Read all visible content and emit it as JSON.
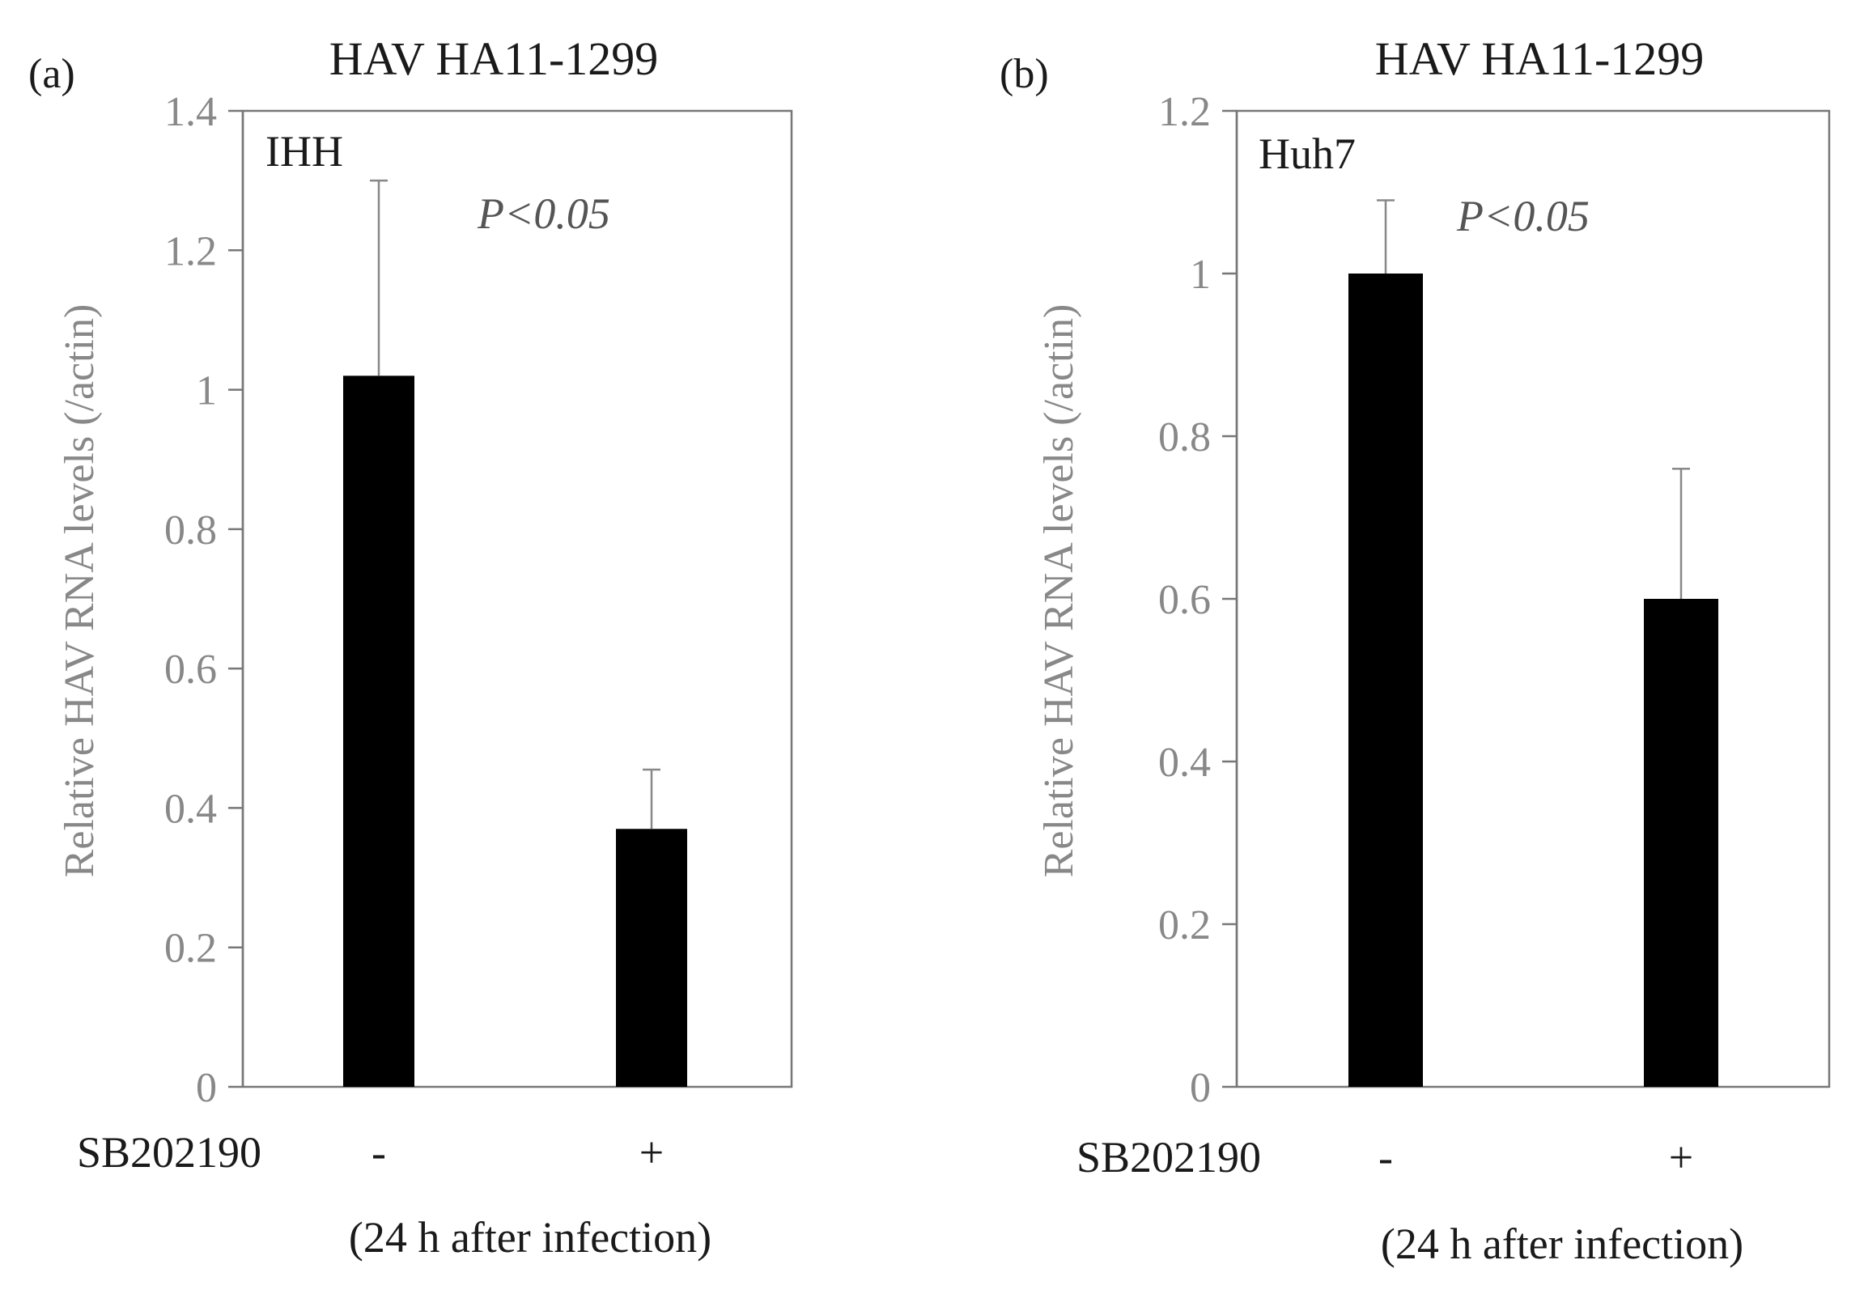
{
  "chart_data": [
    {
      "type": "bar",
      "panel": "(a)",
      "title": "HAV HA11-1299",
      "cell_line": "IHH",
      "annotation": "P<0.05",
      "ylabel": "Relative HAV RNA levels (/actin)",
      "ylim": [
        0,
        1.4
      ],
      "yticks": [
        0,
        0.2,
        0.4,
        0.6,
        0.8,
        1,
        1.2,
        1.4
      ],
      "ytick_labels": [
        "0",
        "0.2",
        "0.4",
        "0.6",
        "0.8",
        "1",
        "1.2",
        "1.4"
      ],
      "treatment_label": "SB202190",
      "categories": [
        "-",
        "+"
      ],
      "values": [
        1.02,
        0.37
      ],
      "errors": [
        0.28,
        0.085
      ],
      "xnote": "(24 h after infection)"
    },
    {
      "type": "bar",
      "panel": "(b)",
      "title": "HAV HA11-1299",
      "cell_line": "Huh7",
      "annotation": "P<0.05",
      "ylabel": "Relative HAV RNA levels (/actin)",
      "ylim": [
        0,
        1.2
      ],
      "yticks": [
        0,
        0.2,
        0.4,
        0.6,
        0.8,
        1,
        1.2
      ],
      "ytick_labels": [
        "0",
        "0.2",
        "0.4",
        "0.6",
        "0.8",
        "1",
        "1.2"
      ],
      "treatment_label": "SB202190",
      "categories": [
        "-",
        "+"
      ],
      "values": [
        1.0,
        0.6
      ],
      "errors": [
        0.09,
        0.16
      ],
      "xnote": "(24 h after infection)"
    }
  ],
  "colors": {
    "bar": "#000000",
    "axis": "#777777",
    "tick_text": "#888888"
  }
}
